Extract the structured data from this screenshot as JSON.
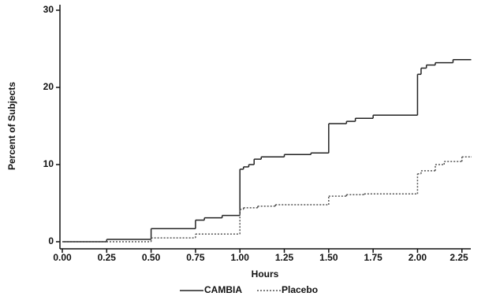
{
  "chart_data": {
    "type": "step",
    "x_label": "Hours",
    "y_label": "Percent of Subjects",
    "xlim": [
      0,
      2.3
    ],
    "ylim": [
      0,
      30
    ],
    "xticks": [
      {
        "value": 0,
        "label": "0.00"
      },
      {
        "value": 0.25,
        "label": "0.25"
      },
      {
        "value": 0.5,
        "label": "0.50"
      },
      {
        "value": 0.75,
        "label": "0.75"
      },
      {
        "value": 1,
        "label": "1.00"
      },
      {
        "value": 1.25,
        "label": "1.25"
      },
      {
        "value": 1.5,
        "label": "1.50"
      },
      {
        "value": 1.75,
        "label": "1.75"
      },
      {
        "value": 2,
        "label": "2.00"
      },
      {
        "value": 2.25,
        "label": "2.25"
      }
    ],
    "yticks": [
      0,
      10,
      20,
      30
    ],
    "legend": "bottom",
    "series": [
      {
        "name": "CAMBIA",
        "color": "#222222",
        "style": "solid",
        "x": [
          0,
          0.25,
          0.5,
          0.75,
          0.8,
          0.9,
          1.0,
          1.02,
          1.05,
          1.08,
          1.12,
          1.25,
          1.4,
          1.5,
          1.6,
          1.65,
          1.75,
          2.0,
          2.02,
          2.05,
          2.1,
          2.2,
          2.3
        ],
        "values": [
          0,
          0.3,
          1.7,
          2.8,
          3.1,
          3.4,
          9.4,
          9.7,
          10.0,
          10.7,
          11.0,
          11.3,
          11.5,
          15.3,
          15.6,
          16.0,
          16.4,
          21.7,
          22.5,
          22.9,
          23.2,
          23.6,
          23.6
        ]
      },
      {
        "name": "Placebo",
        "color": "#555555",
        "style": "dotted",
        "x": [
          0,
          0.5,
          0.75,
          1.0,
          1.02,
          1.1,
          1.2,
          1.5,
          1.6,
          1.7,
          2.0,
          2.02,
          2.1,
          2.15,
          2.25,
          2.3
        ],
        "values": [
          0,
          0.5,
          1.0,
          4.2,
          4.4,
          4.6,
          4.8,
          5.9,
          6.1,
          6.2,
          8.8,
          9.2,
          10.0,
          10.4,
          11.0,
          11.0
        ]
      }
    ]
  }
}
